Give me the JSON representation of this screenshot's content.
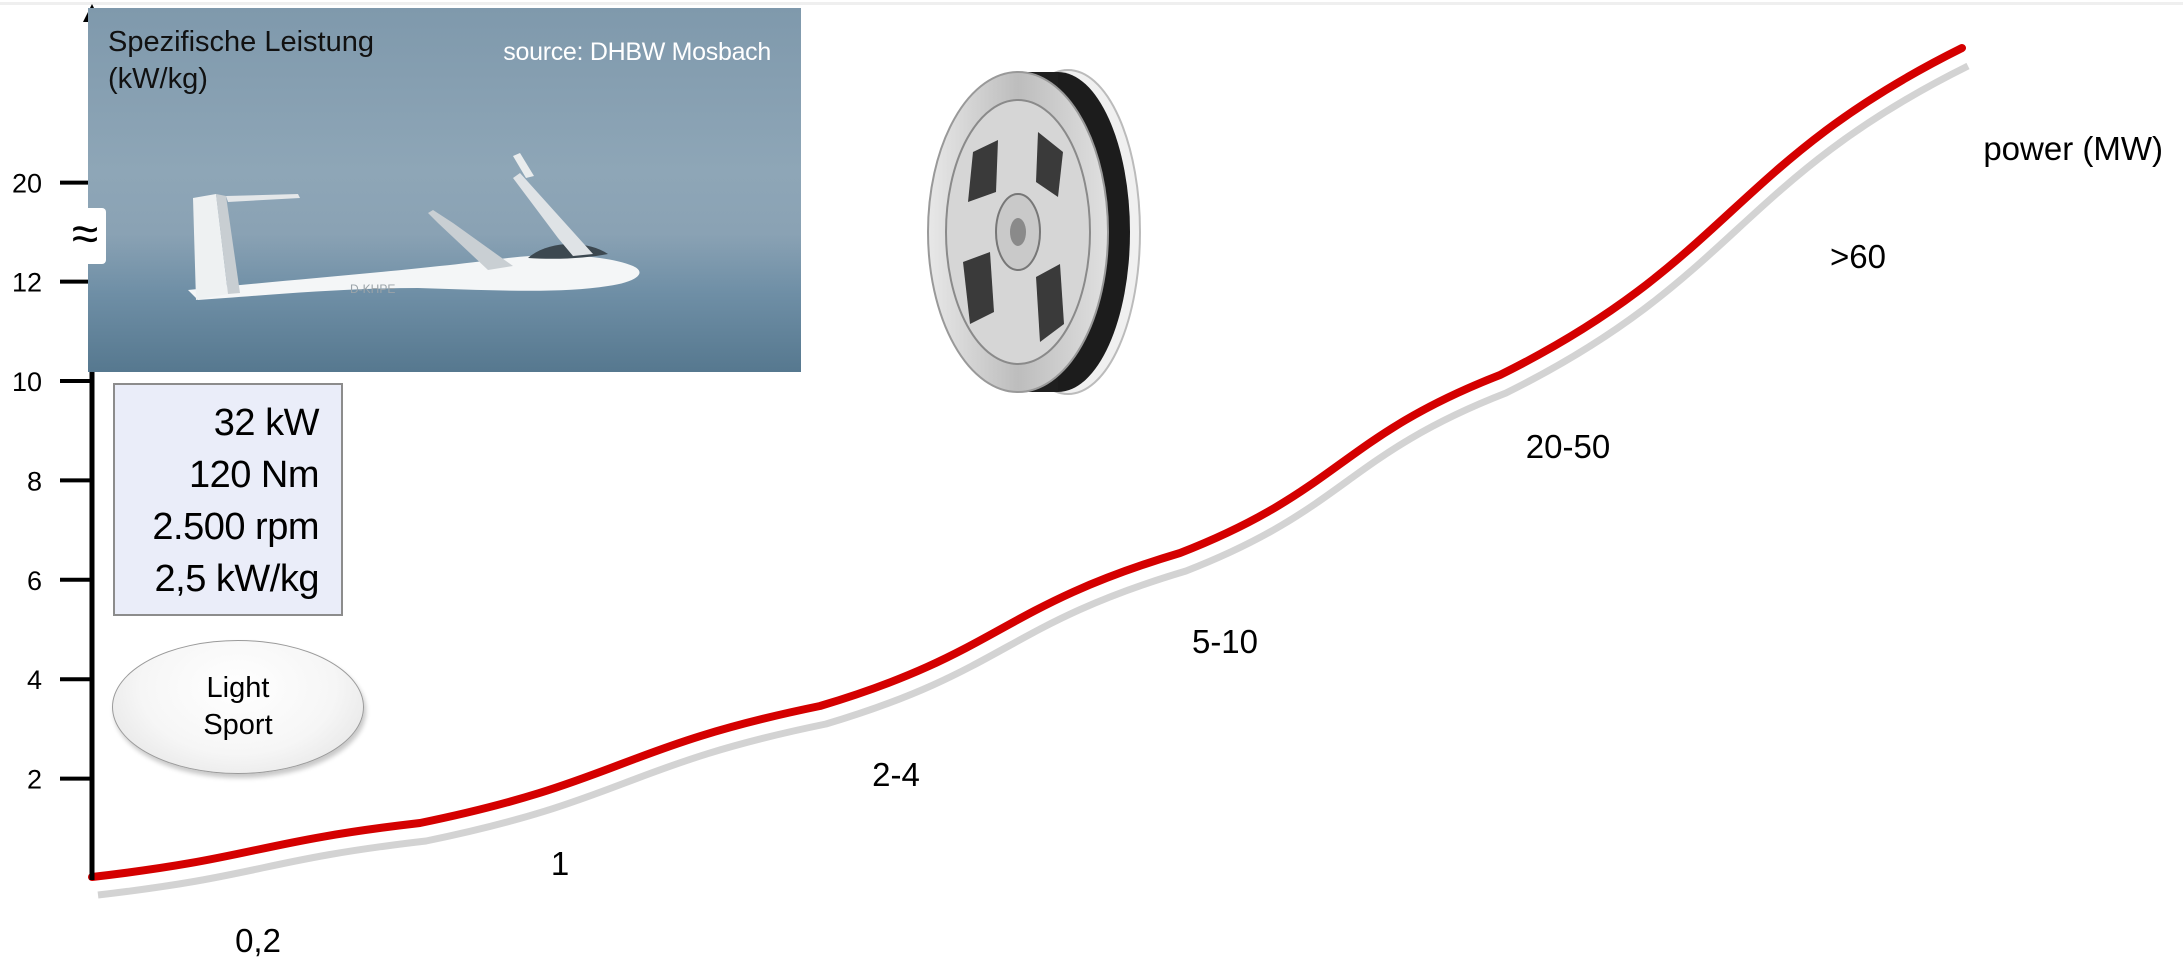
{
  "chart_data": {
    "type": "line",
    "ylabel": "Spezifische Leistung (kW/kg)",
    "ylabel_lines": [
      "Spezifische Leistung",
      "(kW/kg)"
    ],
    "xlabel": "power (MW)",
    "y_ticks": [
      "2",
      "4",
      "6",
      "8",
      "10",
      "12",
      "20",
      "??"
    ],
    "axis_break": "≈",
    "series": [
      {
        "color": "#d40000",
        "points": [
          {
            "x": "0,2",
            "y": 0.2
          },
          {
            "x": "1",
            "y": 1.5
          },
          {
            "x": "2-4",
            "y": 3.3
          },
          {
            "x": "5-10",
            "y": 6.2
          },
          {
            "x": "20-50",
            "y": 10.3
          },
          {
            "x": ">60",
            "y": 16.5
          }
        ]
      }
    ],
    "point_labels": [
      "0,2",
      "1",
      "2-4",
      "5-10",
      "20-50",
      ">60"
    ],
    "grid": false,
    "legend": "none"
  },
  "photo": {
    "title": "Spezifische Leistung\n(kW/kg)",
    "source": "source: DHBW Mosbach"
  },
  "specs": [
    "32 kW",
    "120 Nm",
    "2.500 rpm",
    "2,5 kW/kg"
  ],
  "category_label": "Light\nSport",
  "colors": {
    "curve": "#d40000",
    "shadow": "#d3d3d3",
    "specs_fill": "#eaedf9"
  },
  "icons": [
    "glider-image",
    "electric-motor-image"
  ]
}
